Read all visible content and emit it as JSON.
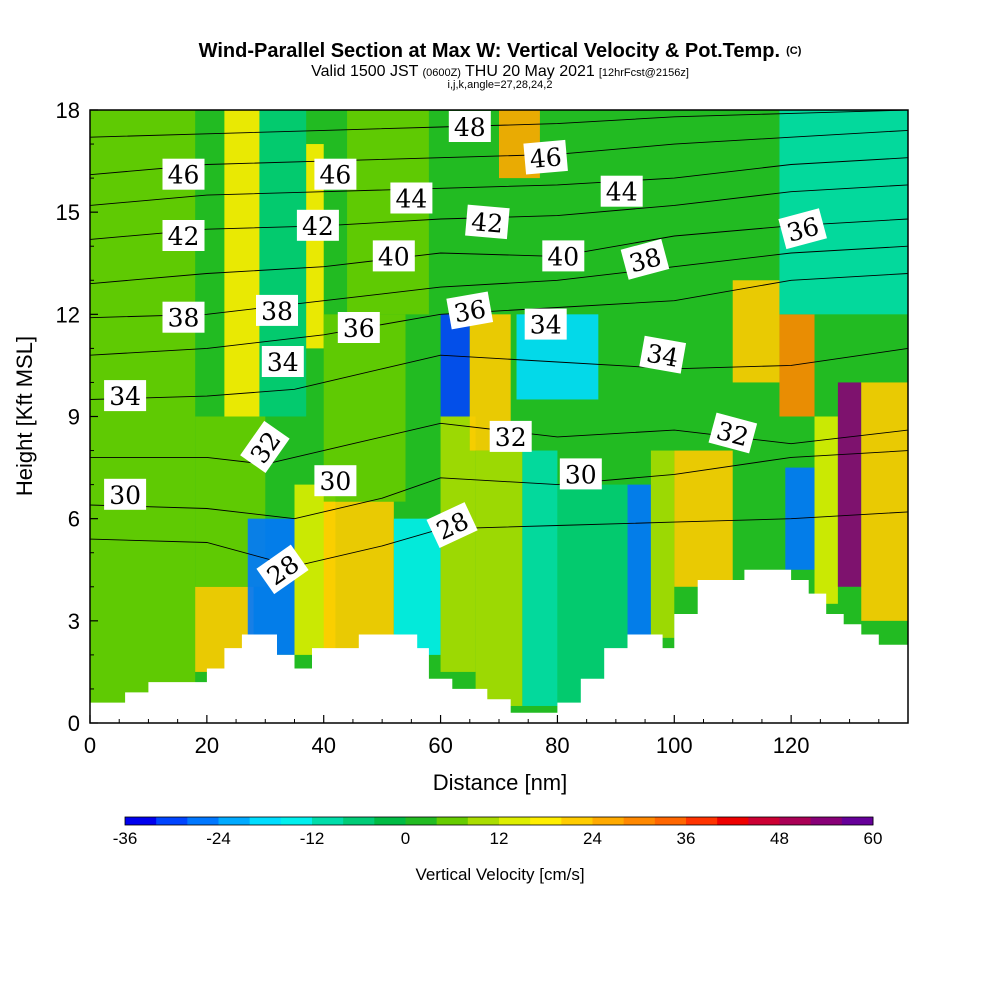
{
  "chart_data": {
    "type": "heatmap",
    "title": "Wind-Parallel Section at Max W: Vertical Velocity & Pot.Temp.",
    "title_mark": "(C)",
    "subtitle": {
      "prefix": "Valid 1500 JST",
      "utc": "(0600Z)",
      "date": "THU 20 May 2021",
      "fcst": "[12hrFcst@2156z]"
    },
    "subtitle2": "i,j,k,angle=27,28,24,2",
    "xlabel": "Distance [nm]",
    "ylabel": "Height [Kft MSL]",
    "xlim": [
      0,
      140
    ],
    "ylim": [
      0,
      18
    ],
    "x_ticks": [
      "0",
      "20",
      "40",
      "60",
      "80",
      "100",
      "120"
    ],
    "y_ticks": [
      "0",
      "3",
      "6",
      "9",
      "12",
      "15",
      "18"
    ],
    "colorbar": {
      "label": "Vertical Velocity [cm/s]",
      "range": [
        -36,
        60
      ],
      "tick_labels": [
        "-36",
        "-24",
        "-12",
        "0",
        "12",
        "24",
        "36",
        "48",
        "60"
      ],
      "colors": [
        "#0000ee",
        "#0044ff",
        "#0077ff",
        "#00aaff",
        "#00ddff",
        "#00f0ee",
        "#00ddaa",
        "#00cc77",
        "#00bb44",
        "#22bb22",
        "#66cc00",
        "#aadd00",
        "#ddee00",
        "#ffee00",
        "#ffcc00",
        "#ffaa00",
        "#ff8800",
        "#ff6600",
        "#ff3300",
        "#ee0000",
        "#cc0033",
        "#aa0055",
        "#880077",
        "#660099"
      ]
    },
    "color_cells": [
      {
        "x0": 0,
        "x1": 18,
        "y0": 0,
        "y1": 18,
        "w": 4
      },
      {
        "x0": 18,
        "x1": 28,
        "y0": 1.5,
        "y1": 4,
        "w": 20
      },
      {
        "x0": 18,
        "x1": 30,
        "y0": 4,
        "y1": 9,
        "w": 6
      },
      {
        "x0": 23,
        "x1": 29,
        "y0": 9,
        "y1": 18,
        "w": 16
      },
      {
        "x0": 27,
        "x1": 35,
        "y0": 2,
        "y1": 6,
        "w": -26
      },
      {
        "x0": 29,
        "x1": 37,
        "y0": 9,
        "y1": 18,
        "w": -8
      },
      {
        "x0": 35,
        "x1": 42,
        "y0": 2,
        "y1": 7,
        "w": 12
      },
      {
        "x0": 37,
        "x1": 40,
        "y0": 11,
        "y1": 17,
        "w": 16
      },
      {
        "x0": 40,
        "x1": 52,
        "y0": 2,
        "y1": 6.5,
        "w": 22
      },
      {
        "x0": 40,
        "x1": 54,
        "y0": 6.5,
        "y1": 12,
        "w": 6
      },
      {
        "x0": 52,
        "x1": 60,
        "y0": 2,
        "y1": 6,
        "w": -16
      },
      {
        "x0": 44,
        "x1": 58,
        "y0": 12,
        "y1": 18,
        "w": 4
      },
      {
        "x0": 60,
        "x1": 66,
        "y0": 1.5,
        "y1": 9,
        "w": 10
      },
      {
        "x0": 60,
        "x1": 65,
        "y0": 9,
        "y1": 12,
        "w": -32
      },
      {
        "x0": 65,
        "x1": 72,
        "y0": 8,
        "y1": 12,
        "w": 20
      },
      {
        "x0": 66,
        "x1": 74,
        "y0": 0.5,
        "y1": 8,
        "w": 10
      },
      {
        "x0": 74,
        "x1": 80,
        "y0": 0.5,
        "y1": 8,
        "w": -10
      },
      {
        "x0": 70,
        "x1": 77,
        "y0": 16,
        "y1": 18,
        "w": 24
      },
      {
        "x0": 73,
        "x1": 87,
        "y0": 9.5,
        "y1": 12,
        "w": -18
      },
      {
        "x0": 80,
        "x1": 92,
        "y0": 0.5,
        "y1": 7,
        "w": -8
      },
      {
        "x0": 92,
        "x1": 96,
        "y0": 2.5,
        "y1": 7,
        "w": -28
      },
      {
        "x0": 96,
        "x1": 100,
        "y0": 2.5,
        "y1": 8,
        "w": 10
      },
      {
        "x0": 100,
        "x1": 110,
        "y0": 4,
        "y1": 8,
        "w": 20
      },
      {
        "x0": 110,
        "x1": 118,
        "y0": 10,
        "y1": 13,
        "w": 22
      },
      {
        "x0": 118,
        "x1": 124,
        "y0": 9,
        "y1": 12,
        "w": 28
      },
      {
        "x0": 119,
        "x1": 124,
        "y0": 4.5,
        "y1": 7.5,
        "w": -28
      },
      {
        "x0": 124,
        "x1": 128,
        "y0": 3.5,
        "y1": 9,
        "w": 12
      },
      {
        "x0": 128,
        "x1": 132,
        "y0": 4,
        "y1": 10,
        "w": 52
      },
      {
        "x0": 132,
        "x1": 140,
        "y0": 3,
        "y1": 10,
        "w": 22
      },
      {
        "x0": 118,
        "x1": 140,
        "y0": 12,
        "y1": 18,
        "w": -10
      }
    ],
    "terrain": [
      [
        0,
        0.6
      ],
      [
        6,
        0.6
      ],
      [
        6,
        0.9
      ],
      [
        10,
        0.9
      ],
      [
        10,
        1.2
      ],
      [
        20,
        1.2
      ],
      [
        20,
        1.6
      ],
      [
        23,
        1.6
      ],
      [
        23,
        2.2
      ],
      [
        26,
        2.2
      ],
      [
        26,
        2.6
      ],
      [
        32,
        2.6
      ],
      [
        32,
        2.0
      ],
      [
        35,
        2.0
      ],
      [
        35,
        1.6
      ],
      [
        38,
        1.6
      ],
      [
        38,
        2.2
      ],
      [
        46,
        2.2
      ],
      [
        46,
        2.6
      ],
      [
        56,
        2.6
      ],
      [
        56,
        2.2
      ],
      [
        58,
        2.2
      ],
      [
        58,
        1.3
      ],
      [
        62,
        1.3
      ],
      [
        62,
        1.0
      ],
      [
        68,
        1.0
      ],
      [
        68,
        0.7
      ],
      [
        72,
        0.7
      ],
      [
        72,
        0.3
      ],
      [
        80,
        0.3
      ],
      [
        80,
        0.6
      ],
      [
        84,
        0.6
      ],
      [
        84,
        1.3
      ],
      [
        88,
        1.3
      ],
      [
        88,
        2.2
      ],
      [
        92,
        2.2
      ],
      [
        92,
        2.6
      ],
      [
        98,
        2.6
      ],
      [
        98,
        2.2
      ],
      [
        100,
        2.2
      ],
      [
        100,
        3.2
      ],
      [
        104,
        3.2
      ],
      [
        104,
        4.2
      ],
      [
        112,
        4.2
      ],
      [
        112,
        4.5
      ],
      [
        120,
        4.5
      ],
      [
        120,
        4.2
      ],
      [
        123,
        4.2
      ],
      [
        123,
        3.8
      ],
      [
        126,
        3.8
      ],
      [
        126,
        3.2
      ],
      [
        129,
        3.2
      ],
      [
        129,
        2.9
      ],
      [
        132,
        2.9
      ],
      [
        132,
        2.6
      ],
      [
        135,
        2.6
      ],
      [
        135,
        2.3
      ],
      [
        140,
        2.3
      ],
      [
        140,
        0
      ],
      [
        0,
        0
      ]
    ],
    "contours": [
      {
        "theta": 28,
        "points": [
          [
            0,
            5.4
          ],
          [
            20,
            5.3
          ],
          [
            35,
            4.6
          ],
          [
            50,
            5.2
          ],
          [
            60,
            5.7
          ],
          [
            80,
            5.8
          ],
          [
            100,
            5.9
          ],
          [
            120,
            6.0
          ],
          [
            140,
            6.2
          ]
        ]
      },
      {
        "theta": 30,
        "points": [
          [
            0,
            6.4
          ],
          [
            20,
            6.3
          ],
          [
            35,
            6.0
          ],
          [
            50,
            6.6
          ],
          [
            60,
            7.2
          ],
          [
            80,
            7.0
          ],
          [
            100,
            7.3
          ],
          [
            120,
            7.8
          ],
          [
            140,
            8.0
          ]
        ]
      },
      {
        "theta": 32,
        "points": [
          [
            0,
            7.8
          ],
          [
            20,
            7.8
          ],
          [
            30,
            7.6
          ],
          [
            45,
            8.2
          ],
          [
            60,
            8.8
          ],
          [
            80,
            8.4
          ],
          [
            100,
            8.6
          ],
          [
            120,
            8.2
          ],
          [
            140,
            8.6
          ]
        ]
      },
      {
        "theta": 34,
        "points": [
          [
            0,
            9.5
          ],
          [
            20,
            9.6
          ],
          [
            35,
            9.8
          ],
          [
            50,
            10.4
          ],
          [
            60,
            10.8
          ],
          [
            80,
            10.6
          ],
          [
            100,
            10.4
          ],
          [
            120,
            10.5
          ],
          [
            140,
            11.0
          ]
        ]
      },
      {
        "theta": 36,
        "points": [
          [
            0,
            10.8
          ],
          [
            20,
            11.0
          ],
          [
            40,
            11.4
          ],
          [
            60,
            12.0
          ],
          [
            80,
            12.2
          ],
          [
            100,
            12.4
          ],
          [
            120,
            13.0
          ],
          [
            140,
            13.2
          ]
        ]
      },
      {
        "theta": 38,
        "points": [
          [
            0,
            11.9
          ],
          [
            20,
            12.0
          ],
          [
            40,
            12.4
          ],
          [
            60,
            12.8
          ],
          [
            80,
            13.0
          ],
          [
            100,
            13.4
          ],
          [
            120,
            13.8
          ],
          [
            140,
            14.0
          ]
        ]
      },
      {
        "theta": 40,
        "points": [
          [
            0,
            12.9
          ],
          [
            20,
            13.2
          ],
          [
            40,
            13.4
          ],
          [
            60,
            13.8
          ],
          [
            80,
            13.7
          ],
          [
            100,
            14.3
          ],
          [
            120,
            14.6
          ],
          [
            140,
            14.8
          ]
        ]
      },
      {
        "theta": 42,
        "points": [
          [
            0,
            14.2
          ],
          [
            20,
            14.5
          ],
          [
            40,
            14.6
          ],
          [
            60,
            14.8
          ],
          [
            80,
            14.9
          ],
          [
            100,
            15.2
          ],
          [
            120,
            15.6
          ],
          [
            140,
            15.8
          ]
        ]
      },
      {
        "theta": 44,
        "points": [
          [
            0,
            15.2
          ],
          [
            20,
            15.5
          ],
          [
            40,
            15.6
          ],
          [
            60,
            15.7
          ],
          [
            80,
            15.8
          ],
          [
            100,
            16.0
          ],
          [
            120,
            16.4
          ],
          [
            140,
            16.6
          ]
        ]
      },
      {
        "theta": 46,
        "points": [
          [
            0,
            16.1
          ],
          [
            20,
            16.4
          ],
          [
            40,
            16.5
          ],
          [
            60,
            16.6
          ],
          [
            80,
            16.7
          ],
          [
            100,
            17.0
          ],
          [
            120,
            17.2
          ],
          [
            140,
            17.4
          ]
        ]
      },
      {
        "theta": 48,
        "points": [
          [
            0,
            17.2
          ],
          [
            20,
            17.3
          ],
          [
            40,
            17.4
          ],
          [
            60,
            17.5
          ],
          [
            80,
            17.6
          ],
          [
            100,
            17.8
          ],
          [
            120,
            17.9
          ],
          [
            140,
            18.0
          ]
        ]
      }
    ],
    "contour_labels": [
      {
        "text": "28",
        "x": 33,
        "y": 4.5,
        "angle": -35
      },
      {
        "text": "28",
        "x": 62,
        "y": 5.8,
        "angle": -25
      },
      {
        "text": "30",
        "x": 6,
        "y": 6.7,
        "angle": 0
      },
      {
        "text": "30",
        "x": 42,
        "y": 7.1,
        "angle": 0
      },
      {
        "text": "30",
        "x": 84,
        "y": 7.3,
        "angle": 0
      },
      {
        "text": "32",
        "x": 30,
        "y": 8.1,
        "angle": -55
      },
      {
        "text": "32",
        "x": 72,
        "y": 8.4,
        "angle": 0
      },
      {
        "text": "32",
        "x": 110,
        "y": 8.5,
        "angle": 15
      },
      {
        "text": "34",
        "x": 6,
        "y": 9.6,
        "angle": 0
      },
      {
        "text": "34",
        "x": 33,
        "y": 10.6,
        "angle": 0
      },
      {
        "text": "34",
        "x": 78,
        "y": 11.7,
        "angle": 0
      },
      {
        "text": "34",
        "x": 98,
        "y": 10.8,
        "angle": 10
      },
      {
        "text": "36",
        "x": 46,
        "y": 11.6,
        "angle": 0
      },
      {
        "text": "36",
        "x": 65,
        "y": 12.1,
        "angle": -10
      },
      {
        "text": "36",
        "x": 122,
        "y": 14.5,
        "angle": -15
      },
      {
        "text": "38",
        "x": 16,
        "y": 11.9,
        "angle": 0
      },
      {
        "text": "38",
        "x": 32,
        "y": 12.1,
        "angle": 0
      },
      {
        "text": "38",
        "x": 95,
        "y": 13.6,
        "angle": -15
      },
      {
        "text": "40",
        "x": 52,
        "y": 13.7,
        "angle": 0
      },
      {
        "text": "40",
        "x": 81,
        "y": 13.7,
        "angle": 0
      },
      {
        "text": "42",
        "x": 16,
        "y": 14.3,
        "angle": 0
      },
      {
        "text": "42",
        "x": 39,
        "y": 14.6,
        "angle": 0
      },
      {
        "text": "42",
        "x": 68,
        "y": 14.7,
        "angle": 5
      },
      {
        "text": "44",
        "x": 55,
        "y": 15.4,
        "angle": 0
      },
      {
        "text": "44",
        "x": 91,
        "y": 15.6,
        "angle": 0
      },
      {
        "text": "46",
        "x": 16,
        "y": 16.1,
        "angle": 0
      },
      {
        "text": "46",
        "x": 42,
        "y": 16.1,
        "angle": 0
      },
      {
        "text": "46",
        "x": 78,
        "y": 16.6,
        "angle": -5
      },
      {
        "text": "48",
        "x": 65,
        "y": 17.5,
        "angle": 0
      }
    ],
    "grid": false,
    "legend": "colorbar-bottom"
  }
}
